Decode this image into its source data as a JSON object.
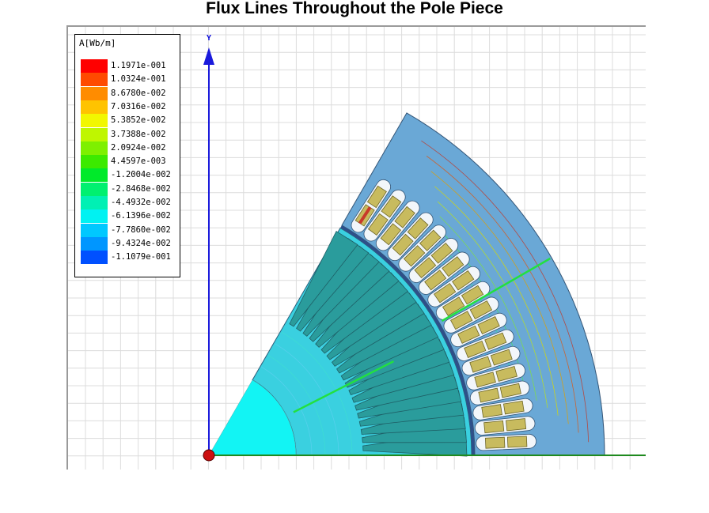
{
  "title": "Flux Lines Throughout the Pole Piece",
  "legend": {
    "title": "A[Wb/m]",
    "entries": [
      {
        "label": "1.1971e-001",
        "color": "#ff0000"
      },
      {
        "label": "1.0324e-001",
        "color": "#ff4a00"
      },
      {
        "label": "8.6780e-002",
        "color": "#ff8c00"
      },
      {
        "label": "7.0316e-002",
        "color": "#ffc300"
      },
      {
        "label": "5.3852e-002",
        "color": "#f2f700"
      },
      {
        "label": "3.7388e-002",
        "color": "#bff600"
      },
      {
        "label": "2.0924e-002",
        "color": "#7ef000"
      },
      {
        "label": "4.4597e-003",
        "color": "#3cea00"
      },
      {
        "label": "-1.2004e-002",
        "color": "#00ea2a"
      },
      {
        "label": "-2.8468e-002",
        "color": "#00f070"
      },
      {
        "label": "-4.4932e-002",
        "color": "#00f0b4"
      },
      {
        "label": "-6.1396e-002",
        "color": "#00f2f2"
      },
      {
        "label": "-7.7860e-002",
        "color": "#00c8ff"
      },
      {
        "label": "-9.4324e-002",
        "color": "#0096ff"
      },
      {
        "label": "-1.1079e-001",
        "color": "#0050ff"
      }
    ]
  },
  "axis": {
    "y_label": "Y"
  },
  "colors": {
    "stator": "#6aa8d6",
    "rotor": "#3ad0e0",
    "shaft": "#12f4f4",
    "rotor_bar": "#2a9c9c",
    "winding": "#c8bb5e",
    "slot": "#f2f6fa",
    "axis_blue": "#1a1adc",
    "axis_green": "#1f8a1f",
    "grid": "#dcdcdc"
  }
}
